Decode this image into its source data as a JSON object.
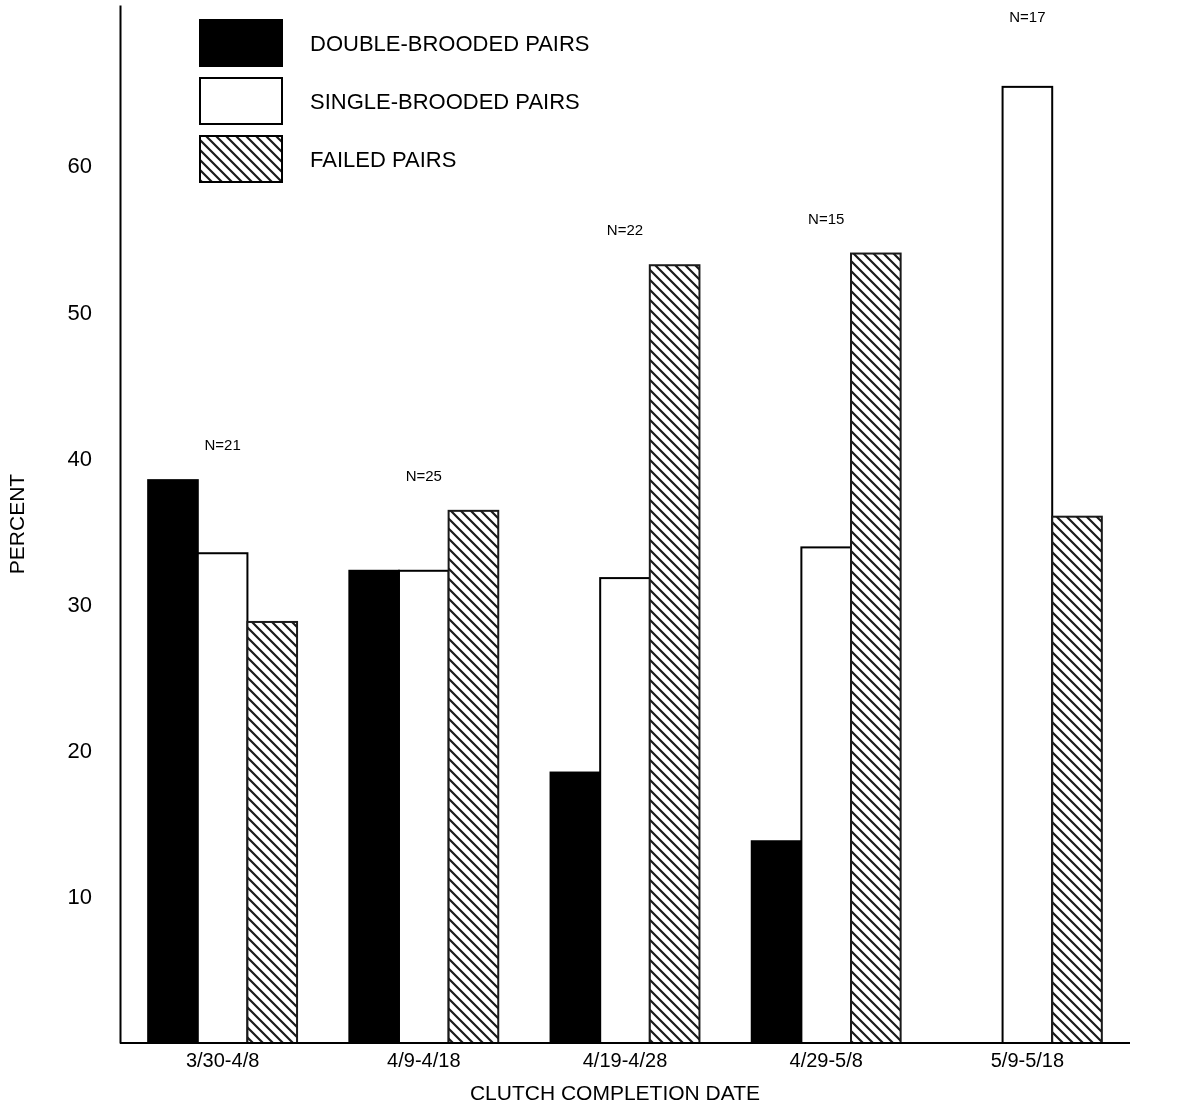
{
  "chart_data": {
    "type": "bar",
    "xlabel": "CLUTCH COMPLETION DATE",
    "ylabel": "PERCENT",
    "categories": [
      "3/30-4/8",
      "4/9-4/18",
      "4/19-4/28",
      "4/29-5/8",
      "5/9-5/18"
    ],
    "series": [
      {
        "name": "DOUBLE-BROODED PAIRS",
        "color": "#000000",
        "values": [
          38.5,
          32.3,
          18.5,
          13.8,
          0
        ]
      },
      {
        "name": "SINGLE-BROODED PAIRS",
        "color": "#ffffff",
        "values": [
          33.5,
          32.3,
          31.8,
          33.9,
          65.4
        ]
      },
      {
        "name": "FAILED PAIRS",
        "color": "#1a1a1a",
        "values": [
          28.8,
          36.4,
          53.2,
          54.0,
          36.0
        ]
      }
    ],
    "ylim": [
      0,
      71
    ],
    "yticks": [
      10,
      20,
      30,
      40,
      50,
      60
    ],
    "grid": false,
    "legend": "top left",
    "annotations": [
      "N=21",
      "N=25",
      "N=22",
      "N=15",
      "N=17"
    ]
  }
}
